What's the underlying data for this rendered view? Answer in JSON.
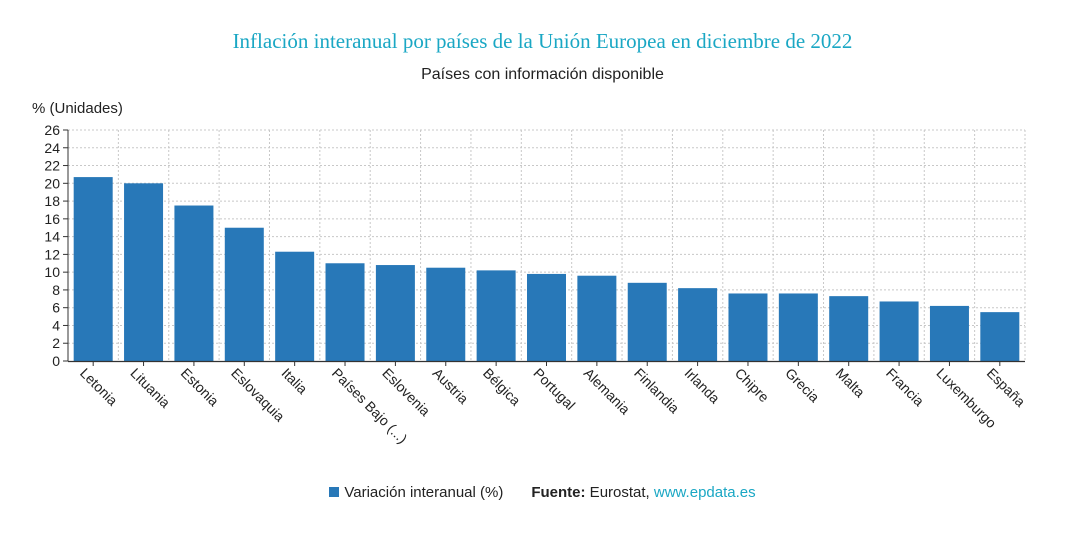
{
  "chart_data": {
    "type": "bar",
    "title": "Inflación interanual por países de la Unión Europea en diciembre de 2022",
    "subtitle": "Países con información disponible",
    "ylabel": "% (Unidades)",
    "ylim": [
      0,
      26
    ],
    "yticks": [
      0,
      2,
      4,
      6,
      8,
      10,
      12,
      14,
      16,
      18,
      20,
      22,
      24,
      26
    ],
    "grid": true,
    "categories": [
      "Letonia",
      "Lituania",
      "Estonia",
      "Eslovaquia",
      "Italia",
      "Países Bajo (...)",
      "Eslovenia",
      "Austria",
      "Bélgica",
      "Portugal",
      "Alemania",
      "Finlandia",
      "Irlanda",
      "Chipre",
      "Grecia",
      "Malta",
      "Francia",
      "Luxemburgo",
      "España"
    ],
    "series": [
      {
        "name": "Variación interanual (%)",
        "color": "#2878b8",
        "values": [
          20.7,
          20.0,
          17.5,
          15.0,
          12.3,
          11.0,
          10.8,
          10.5,
          10.2,
          9.8,
          9.6,
          8.8,
          8.2,
          7.6,
          7.6,
          7.3,
          6.7,
          6.2,
          5.5
        ]
      }
    ],
    "legend_position": "bottom"
  },
  "legend": {
    "series_label": "Variación interanual (%)",
    "source_label": "Fuente:",
    "source_text": " Eurostat, ",
    "source_link": "www.epdata.es"
  },
  "colors": {
    "title": "#1aa7c4",
    "bar": "#2878b8",
    "link": "#1aa7c4"
  }
}
